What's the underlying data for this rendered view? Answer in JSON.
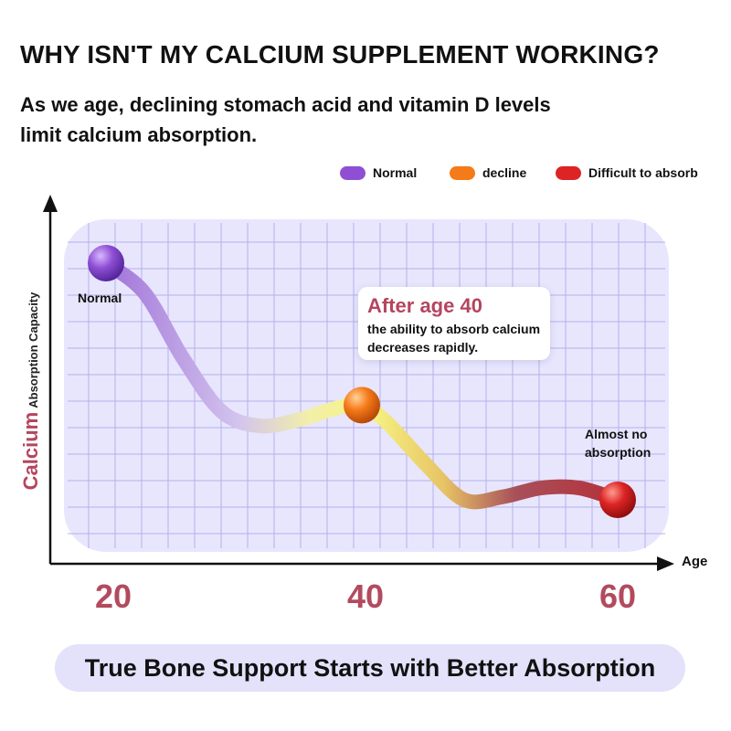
{
  "header": {
    "title": "WHY ISN'T MY CALCIUM SUPPLEMENT WORKING?",
    "subtitle": "As we age, declining stomach acid and vitamin D levels limit calcium absorption."
  },
  "legend": [
    {
      "label": "Normal",
      "color": "#8f4fd4"
    },
    {
      "label": "decline",
      "color": "#f57a18"
    },
    {
      "label": "Difficult to absorb",
      "color": "#dc2424"
    }
  ],
  "callout": {
    "heading": "After age 40",
    "body": "the ability to absorb calcium decreases rapidly."
  },
  "annotations": {
    "normal": "Normal",
    "almost_no": "Almost no absorption"
  },
  "chart_data": {
    "type": "line",
    "xlabel": "Age",
    "ylabel_main": "Calcium",
    "ylabel_sub": "Absorption Capacity",
    "x_ticks": [
      "20",
      "40",
      "60"
    ],
    "xlim": [
      20,
      60
    ],
    "grid": true,
    "legend_position": "top-right",
    "series": [
      {
        "x": [
          20,
          23,
          26,
          29,
          32,
          35,
          38,
          40,
          42,
          45,
          48,
          51,
          54,
          57,
          60
        ],
        "y": [
          0.9,
          0.8,
          0.58,
          0.4,
          0.35,
          0.37,
          0.41,
          0.42,
          0.36,
          0.22,
          0.1,
          0.11,
          0.14,
          0.14,
          0.1
        ]
      }
    ],
    "markers": [
      {
        "x": 20,
        "y": 0.9,
        "stage": "Normal",
        "color": "#8f4fd4"
      },
      {
        "x": 40,
        "y": 0.42,
        "stage": "decline",
        "color": "#f57a18"
      },
      {
        "x": 60,
        "y": 0.1,
        "stage": "Difficult to absorb",
        "color": "#dc2424"
      }
    ]
  },
  "footer": {
    "tagline": "True Bone Support Starts with Better Absorption"
  }
}
